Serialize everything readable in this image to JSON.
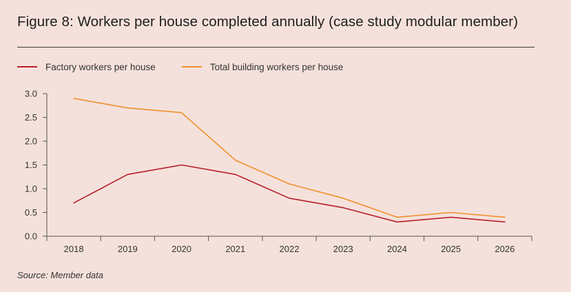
{
  "title": "Figure 8: Workers per house completed annually (case study modular member)",
  "source": "Source: Member data",
  "chart_data": {
    "type": "line",
    "title": "Figure 8: Workers per house completed annually (case study modular member)",
    "xlabel": "",
    "ylabel": "",
    "x": [
      "2018",
      "2019",
      "2020",
      "2021",
      "2022",
      "2023",
      "2024",
      "2025",
      "2026"
    ],
    "ylim": [
      0,
      3.0
    ],
    "yticks": [
      "0.0",
      "0.5",
      "1.0",
      "1.5",
      "2.0",
      "2.5",
      "3.0"
    ],
    "legend_position": "top-left",
    "grid": false,
    "series": [
      {
        "name": "Factory workers per house",
        "color": "#b5202a",
        "values": [
          0.7,
          1.3,
          1.5,
          1.3,
          0.8,
          0.6,
          0.3,
          0.4,
          0.3
        ]
      },
      {
        "name": "Total building workers per house",
        "color": "#f0902c",
        "values": [
          2.9,
          2.7,
          2.6,
          1.6,
          1.1,
          0.8,
          0.4,
          0.5,
          0.4
        ]
      }
    ]
  }
}
